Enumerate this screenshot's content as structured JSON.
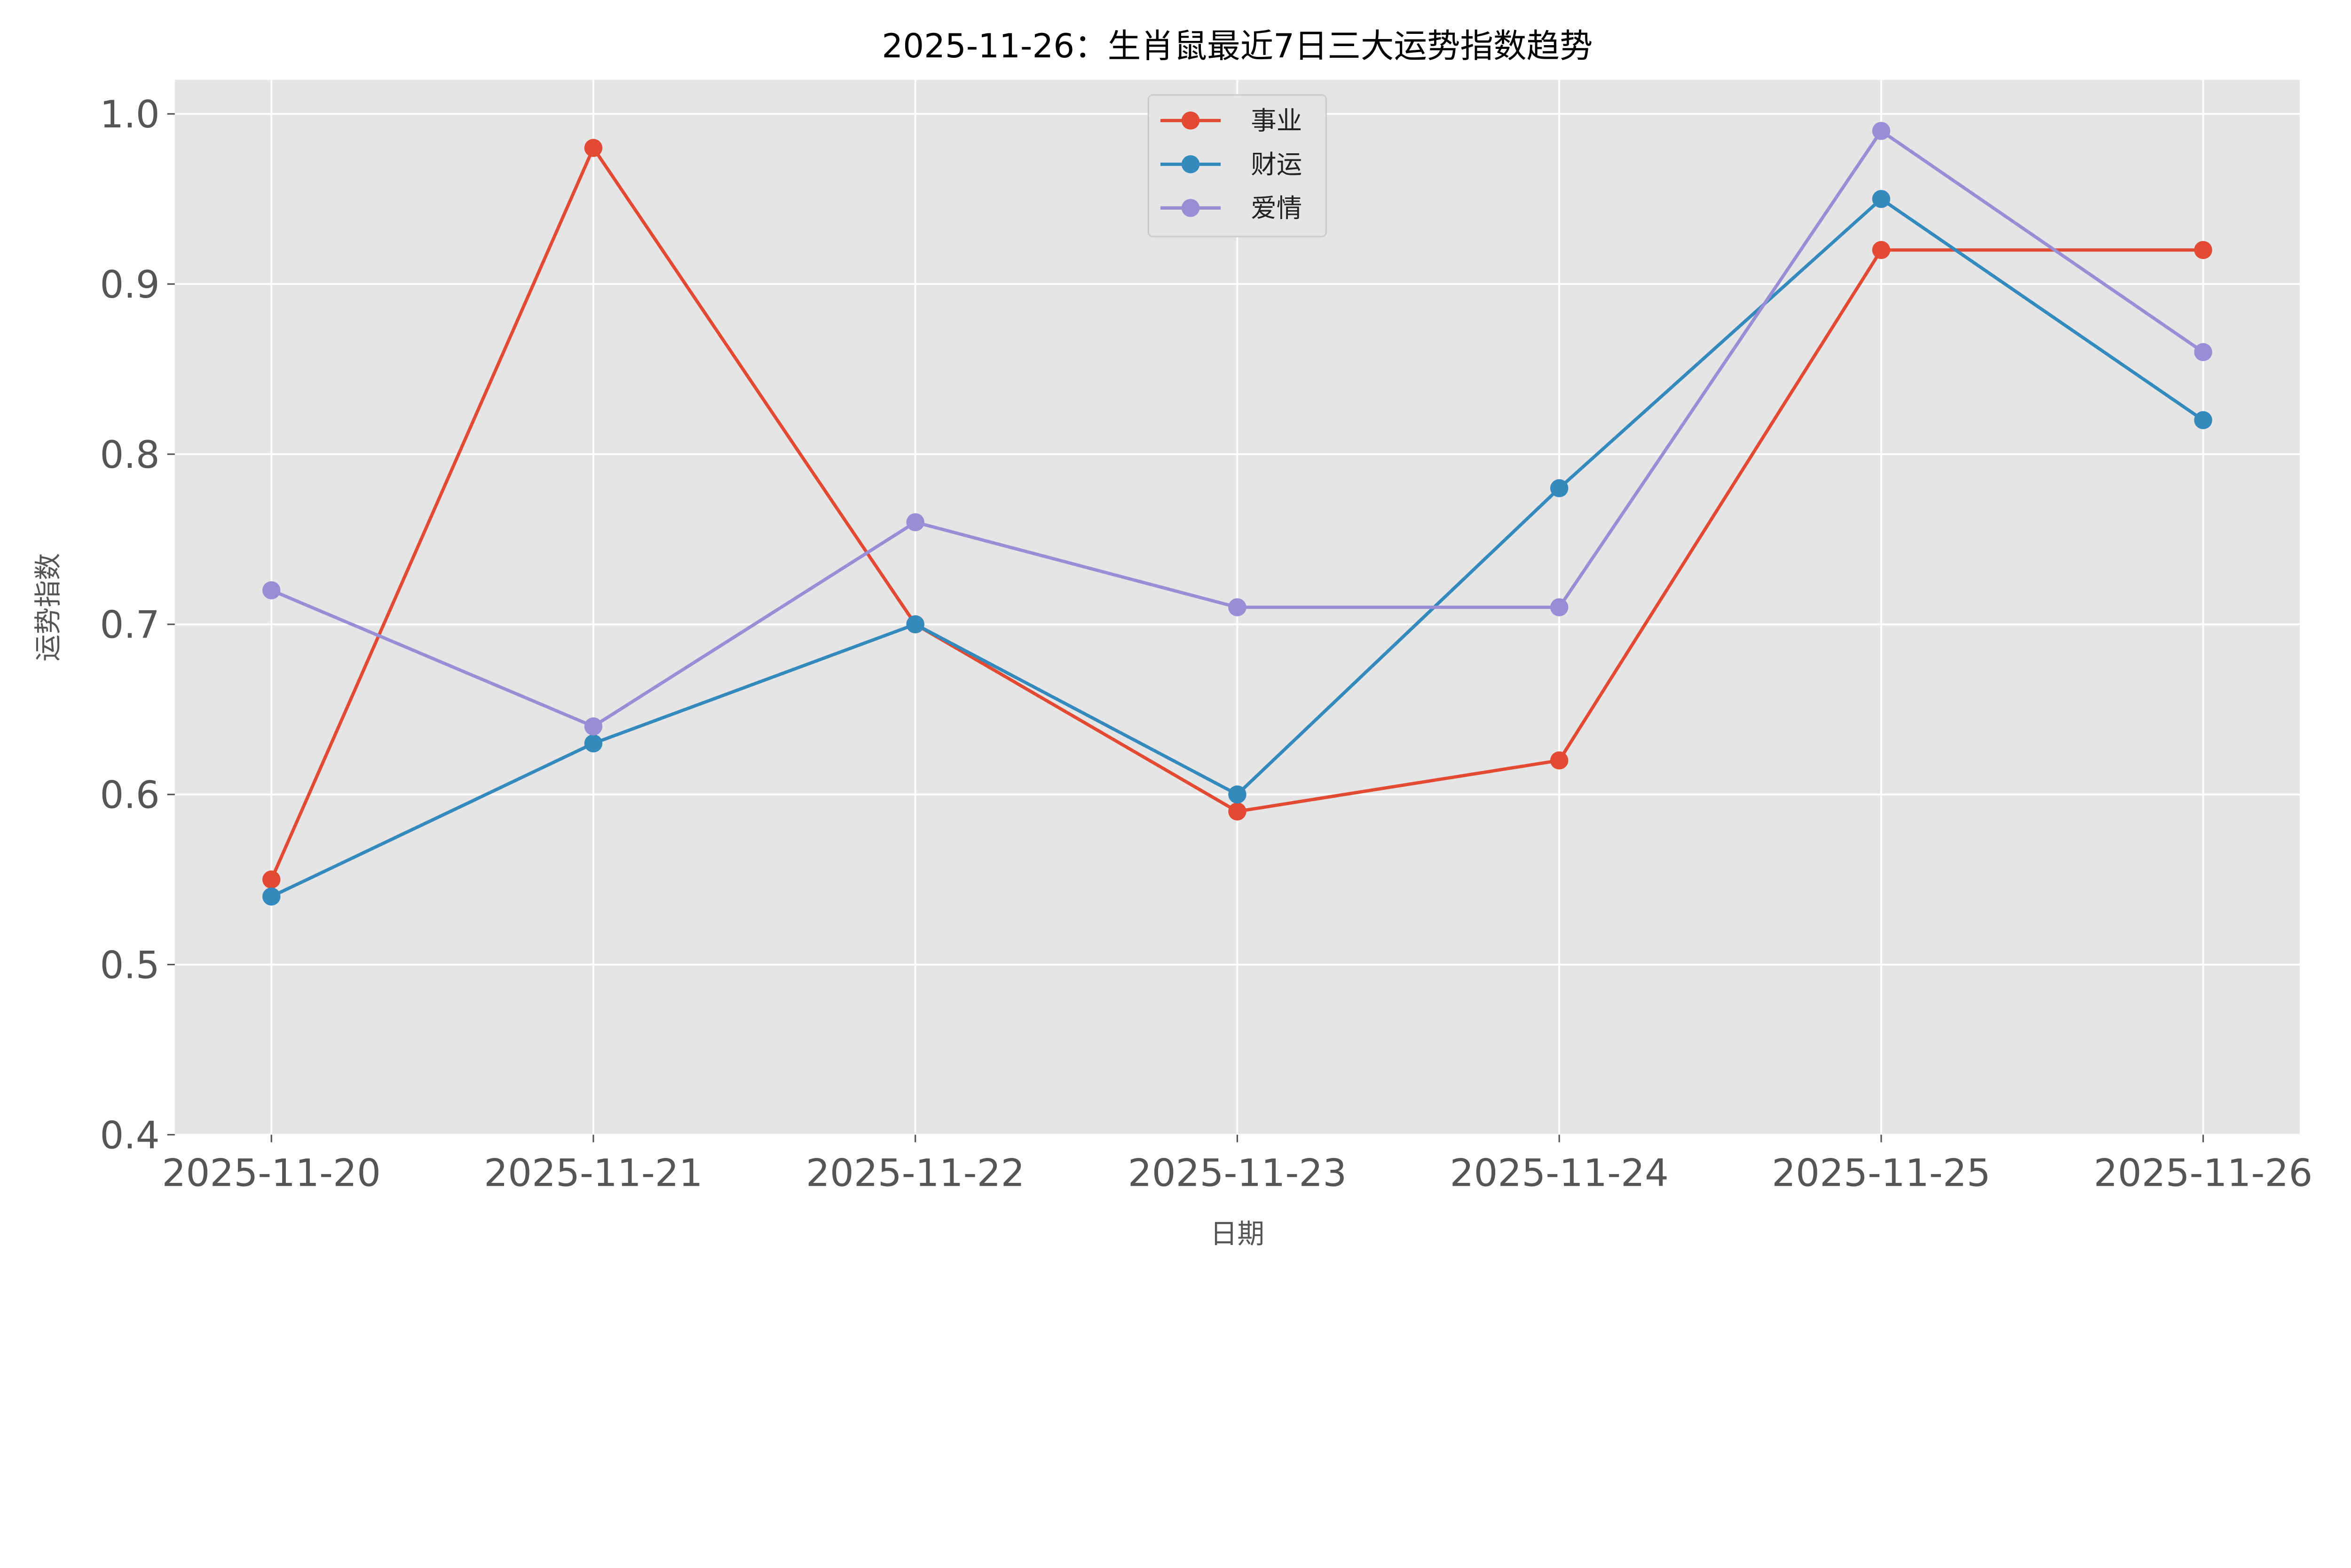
{
  "chart_data": {
    "type": "line",
    "title": "2025-11-26：生肖鼠最近7日三大运势指数趋势",
    "xlabel": "日期",
    "ylabel": "运势指数",
    "categories": [
      "2025-11-20",
      "2025-11-21",
      "2025-11-22",
      "2025-11-23",
      "2025-11-24",
      "2025-11-25",
      "2025-11-26"
    ],
    "ylim": [
      0.4,
      1.02
    ],
    "yticks": [
      "0.4",
      "0.5",
      "0.6",
      "0.7",
      "0.8",
      "0.9",
      "1.0"
    ],
    "grid": true,
    "legend_position": "top-center",
    "series": [
      {
        "name": "事业",
        "color": "#E24A33",
        "values": [
          0.55,
          0.98,
          0.7,
          0.59,
          0.62,
          0.92,
          0.92
        ]
      },
      {
        "name": "财运",
        "color": "#348ABD",
        "values": [
          0.54,
          0.63,
          0.7,
          0.6,
          0.78,
          0.95,
          0.82
        ]
      },
      {
        "name": "爱情",
        "color": "#988ED5",
        "values": [
          0.72,
          0.64,
          0.76,
          0.71,
          0.71,
          0.99,
          0.86
        ]
      }
    ],
    "background": "#E5E5E5"
  }
}
